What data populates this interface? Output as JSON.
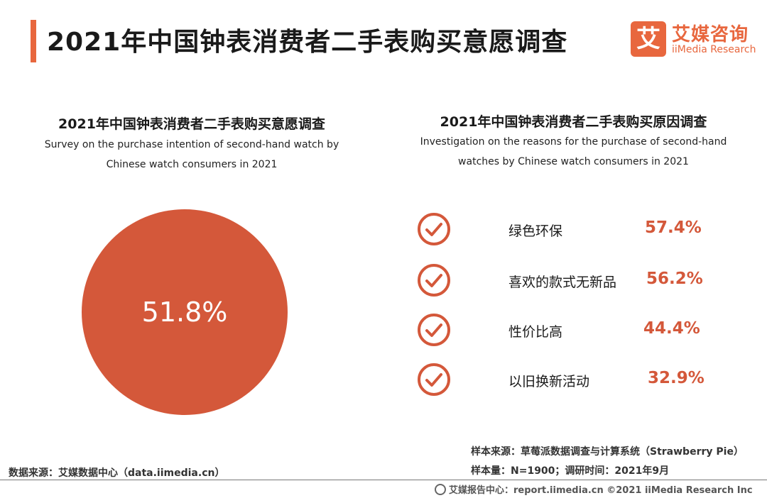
{
  "page": {
    "title": "2021年中国钟表消费者二手表购买意愿调查",
    "logo_mark": "艾",
    "logo_cn": "艾媒咨询",
    "logo_en": "iiMedia Research"
  },
  "left_panel": {
    "title": "2021年中国钟表消费者二手表购买意愿调查",
    "subtitle_en_1": "Survey on the purchase intention of second-hand watch by",
    "subtitle_en_2": "Chinese watch consumers in 2021"
  },
  "right_panel": {
    "title": "2021年中国钟表消费者二手表购买原因调查",
    "subtitle_en_1": "Investigation on the reasons for the purchase of second-hand",
    "subtitle_en_2": "watches by Chinese watch consumers in 2021"
  },
  "chart_data": [
    {
      "type": "pie",
      "title": "2021年中国钟表消费者二手表购买意愿调查",
      "categories": [
        ""
      ],
      "values": [
        51.8
      ],
      "value_labels": [
        "51.8%"
      ],
      "colors": [
        "#d4583a"
      ]
    },
    {
      "type": "table",
      "title": "2021年中国钟表消费者二手表购买原因调查",
      "categories": [
        "绿色环保",
        "喜欢的款式无新品",
        "性价比高",
        "以旧换新活动"
      ],
      "values": [
        57.4,
        56.2,
        44.4,
        32.9
      ],
      "value_labels": [
        "57.4%",
        "56.2%",
        "44.4%",
        "32.9%"
      ],
      "accent": "#d4583a"
    }
  ],
  "notes": {
    "sample_source": "样本来源：草莓派数据调查与计算系统（Strawberry Pie）",
    "sample_size": "样本量：N=1900；调研时间：2021年9月",
    "data_source": "数据来源：艾媒数据中心（data.iimedia.cn）",
    "footer": "艾媒报告中心：report.iimedia.cn   ©2021  iiMedia Research  Inc"
  },
  "colors": {
    "accent": "#e8673e",
    "pie": "#d4583a",
    "value_text": "#d4583a"
  }
}
